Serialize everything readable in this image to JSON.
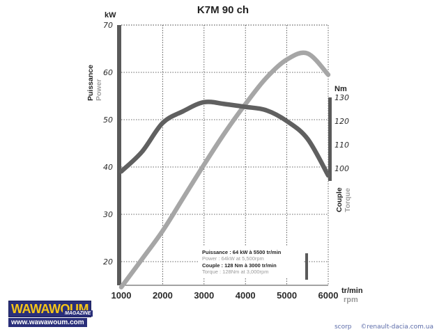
{
  "chart_data": {
    "type": "line",
    "title": "K7M 90 ch",
    "x": [
      1000,
      1500,
      2000,
      2500,
      3000,
      3500,
      4000,
      4500,
      5000,
      5500,
      6000
    ],
    "xticks": [
      "1000",
      "2000",
      "3000",
      "4000",
      "5000",
      "6000"
    ],
    "xtick_values": [
      1000,
      2000,
      3000,
      4000,
      5000,
      6000
    ],
    "xlim": [
      1000,
      6000
    ],
    "xunit": "tr/min",
    "xunit_en": "rpm",
    "left_axis": {
      "unit": "kW",
      "label": "Puissance",
      "label_en": "Power",
      "ylim": [
        15,
        70
      ],
      "ticks": [
        "20",
        "30",
        "40",
        "50",
        "60",
        "70"
      ],
      "tick_values": [
        20,
        30,
        40,
        50,
        60,
        70
      ]
    },
    "right_axis": {
      "unit": "Nm",
      "label": "Couple",
      "label_en": "Torque",
      "ticks": [
        "100",
        "110",
        "120",
        "130"
      ],
      "tick_values": [
        100,
        110,
        120,
        130
      ],
      "value_range": [
        96,
        130
      ]
    },
    "series": [
      {
        "name": "Power",
        "axis": "left",
        "color": "#a6a6a6",
        "values": [
          14.6,
          20.5,
          26.5,
          33.5,
          40.5,
          47.2,
          53.3,
          58.8,
          62.7,
          64.0,
          59.5
        ]
      },
      {
        "name": "Torque",
        "axis": "right",
        "color": "#606060",
        "values": [
          98.7,
          107.0,
          119.2,
          124.2,
          128.0,
          127.2,
          126.0,
          124.6,
          120.0,
          112.5,
          97.0
        ]
      }
    ],
    "grid": true,
    "annotation": {
      "line1": "Puissance : 64 kW à 5500 tr/min",
      "line2": "Power : 64kW at 5,500rpm",
      "line3": "Couple : 128 Nm à 3000 tr/min",
      "line4": "Torque : 128Nm at 3,000rpm"
    }
  },
  "logo": {
    "word": "WAWAWOUM",
    "badge": "MAGAZINE",
    "url": "www.wawawoum.com"
  },
  "credit": {
    "author": "scorp",
    "site": "©renault-dacia.com.ua"
  }
}
